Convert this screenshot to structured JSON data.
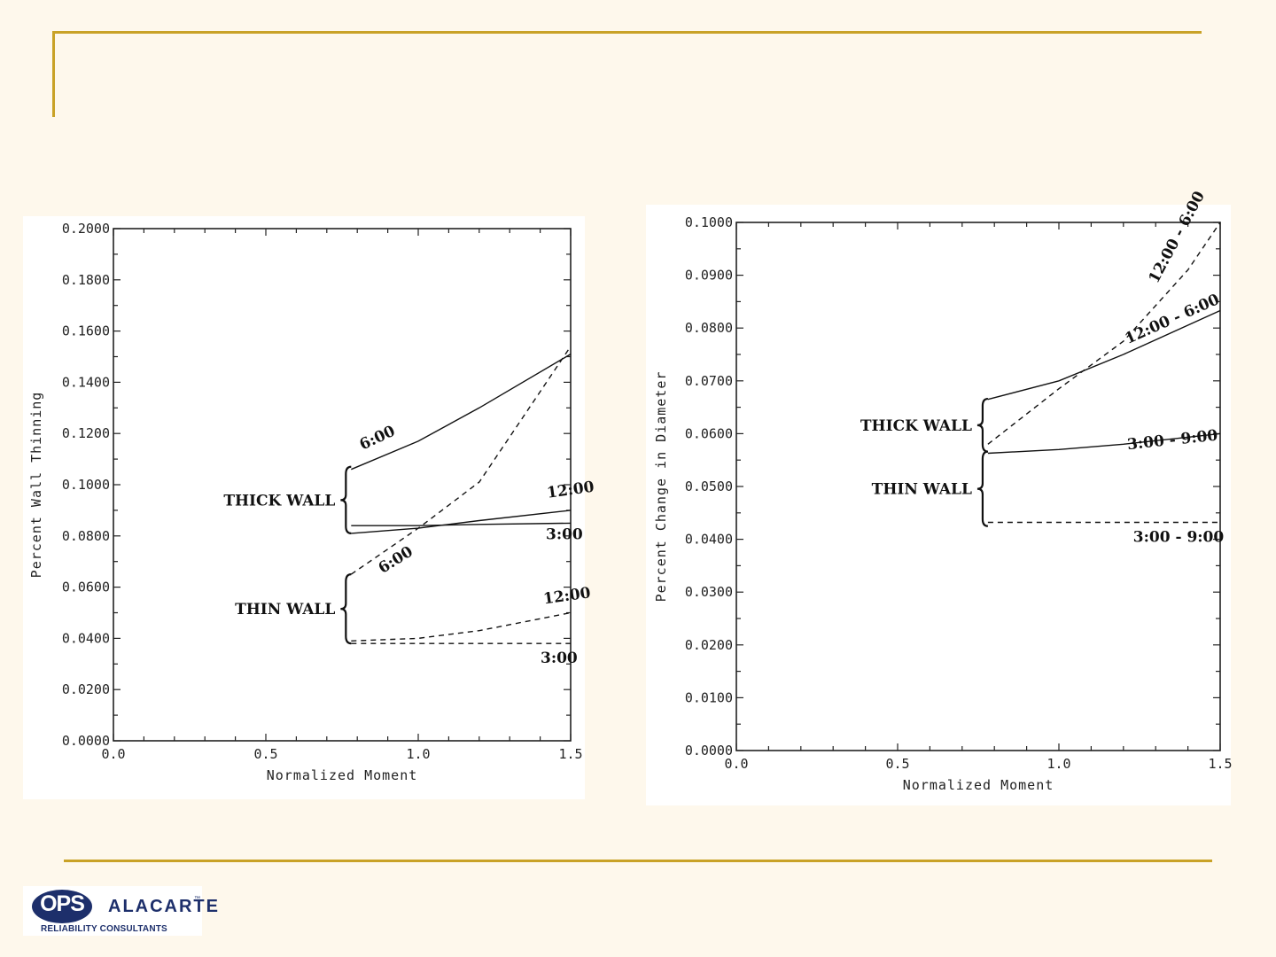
{
  "colors": {
    "background": "#fef8ec",
    "frame": "#c9a227",
    "logo_blue": "#1d2f6b",
    "ink": "#222222"
  },
  "logo": {
    "mark": "OPS",
    "name": "ALACARTE",
    "trademark": "™",
    "tagline": "RELIABILITY CONSULTANTS"
  },
  "chart_data": [
    {
      "type": "line",
      "title": "",
      "xlabel": "Normalized Moment",
      "ylabel": "Percent Wall Thinning",
      "xlim": [
        0.0,
        1.5
      ],
      "ylim": [
        0.0,
        0.2
      ],
      "x_ticks": [
        "0.0",
        "0.5",
        "1.0",
        "1.5"
      ],
      "y_ticks": [
        "0.0000",
        "0.0200",
        "0.0400",
        "0.0600",
        "0.0800",
        "0.1000",
        "0.1200",
        "0.1400",
        "0.1600",
        "0.1800",
        "0.2000"
      ],
      "groups": [
        {
          "label": "THICK WALL",
          "range": [
            0.081,
            0.107
          ]
        },
        {
          "label": "THIN WALL",
          "range": [
            0.038,
            0.065
          ]
        }
      ],
      "series": [
        {
          "name": "6:00",
          "group": "THICK WALL",
          "style": "solid",
          "x": [
            0.78,
            1.0,
            1.2,
            1.5
          ],
          "y": [
            0.106,
            0.117,
            0.13,
            0.151
          ]
        },
        {
          "name": "12:00",
          "group": "THICK WALL",
          "style": "solid",
          "x": [
            0.78,
            1.0,
            1.2,
            1.5
          ],
          "y": [
            0.081,
            0.083,
            0.086,
            0.09
          ]
        },
        {
          "name": "3:00",
          "group": "THICK WALL",
          "style": "solid",
          "x": [
            0.78,
            1.0,
            1.2,
            1.5
          ],
          "y": [
            0.084,
            0.084,
            0.0845,
            0.085
          ]
        },
        {
          "name": "6:00",
          "group": "THIN WALL",
          "style": "dashed",
          "x": [
            0.78,
            1.0,
            1.2,
            1.5
          ],
          "y": [
            0.065,
            0.083,
            0.101,
            0.154
          ]
        },
        {
          "name": "12:00",
          "group": "THIN WALL",
          "style": "dashed",
          "x": [
            0.78,
            1.0,
            1.2,
            1.5
          ],
          "y": [
            0.039,
            0.04,
            0.043,
            0.05
          ]
        },
        {
          "name": "3:00",
          "group": "THIN WALL",
          "style": "dashed",
          "x": [
            0.78,
            1.0,
            1.2,
            1.5
          ],
          "y": [
            0.038,
            0.038,
            0.038,
            0.038
          ]
        }
      ]
    },
    {
      "type": "line",
      "title": "",
      "xlabel": "Normalized Moment",
      "ylabel": "Percent Change in Diameter",
      "xlim": [
        0.0,
        1.5
      ],
      "ylim": [
        0.0,
        0.1
      ],
      "x_ticks": [
        "0.0",
        "0.5",
        "1.0",
        "1.5"
      ],
      "y_ticks": [
        "0.0000",
        "0.0100",
        "0.0200",
        "0.0300",
        "0.0400",
        "0.0500",
        "0.0600",
        "0.0700",
        "0.0800",
        "0.0900",
        "0.1000"
      ],
      "groups": [
        {
          "label": "THICK WALL",
          "range": [
            0.0566,
            0.0666
          ]
        },
        {
          "label": "THIN WALL",
          "range": [
            0.0425,
            0.0566
          ]
        }
      ],
      "series": [
        {
          "name": "12:00 - 6:00",
          "group": "THIN WALL",
          "style": "dashed",
          "x": [
            0.78,
            1.0,
            1.2,
            1.4,
            1.5
          ],
          "y": [
            0.058,
            0.0685,
            0.0775,
            0.091,
            0.1
          ]
        },
        {
          "name": "12:00 - 6:00",
          "group": "THICK WALL",
          "style": "solid",
          "x": [
            0.78,
            1.0,
            1.2,
            1.5
          ],
          "y": [
            0.0665,
            0.07,
            0.075,
            0.0833
          ]
        },
        {
          "name": "3:00 - 9:00",
          "group": "THICK WALL",
          "style": "solid",
          "x": [
            0.78,
            1.0,
            1.2,
            1.5
          ],
          "y": [
            0.0563,
            0.057,
            0.058,
            0.06
          ]
        },
        {
          "name": "3:00 - 9:00",
          "group": "THIN WALL",
          "style": "dashed",
          "x": [
            0.78,
            1.0,
            1.2,
            1.5
          ],
          "y": [
            0.0432,
            0.0432,
            0.0432,
            0.0432
          ]
        }
      ]
    }
  ]
}
